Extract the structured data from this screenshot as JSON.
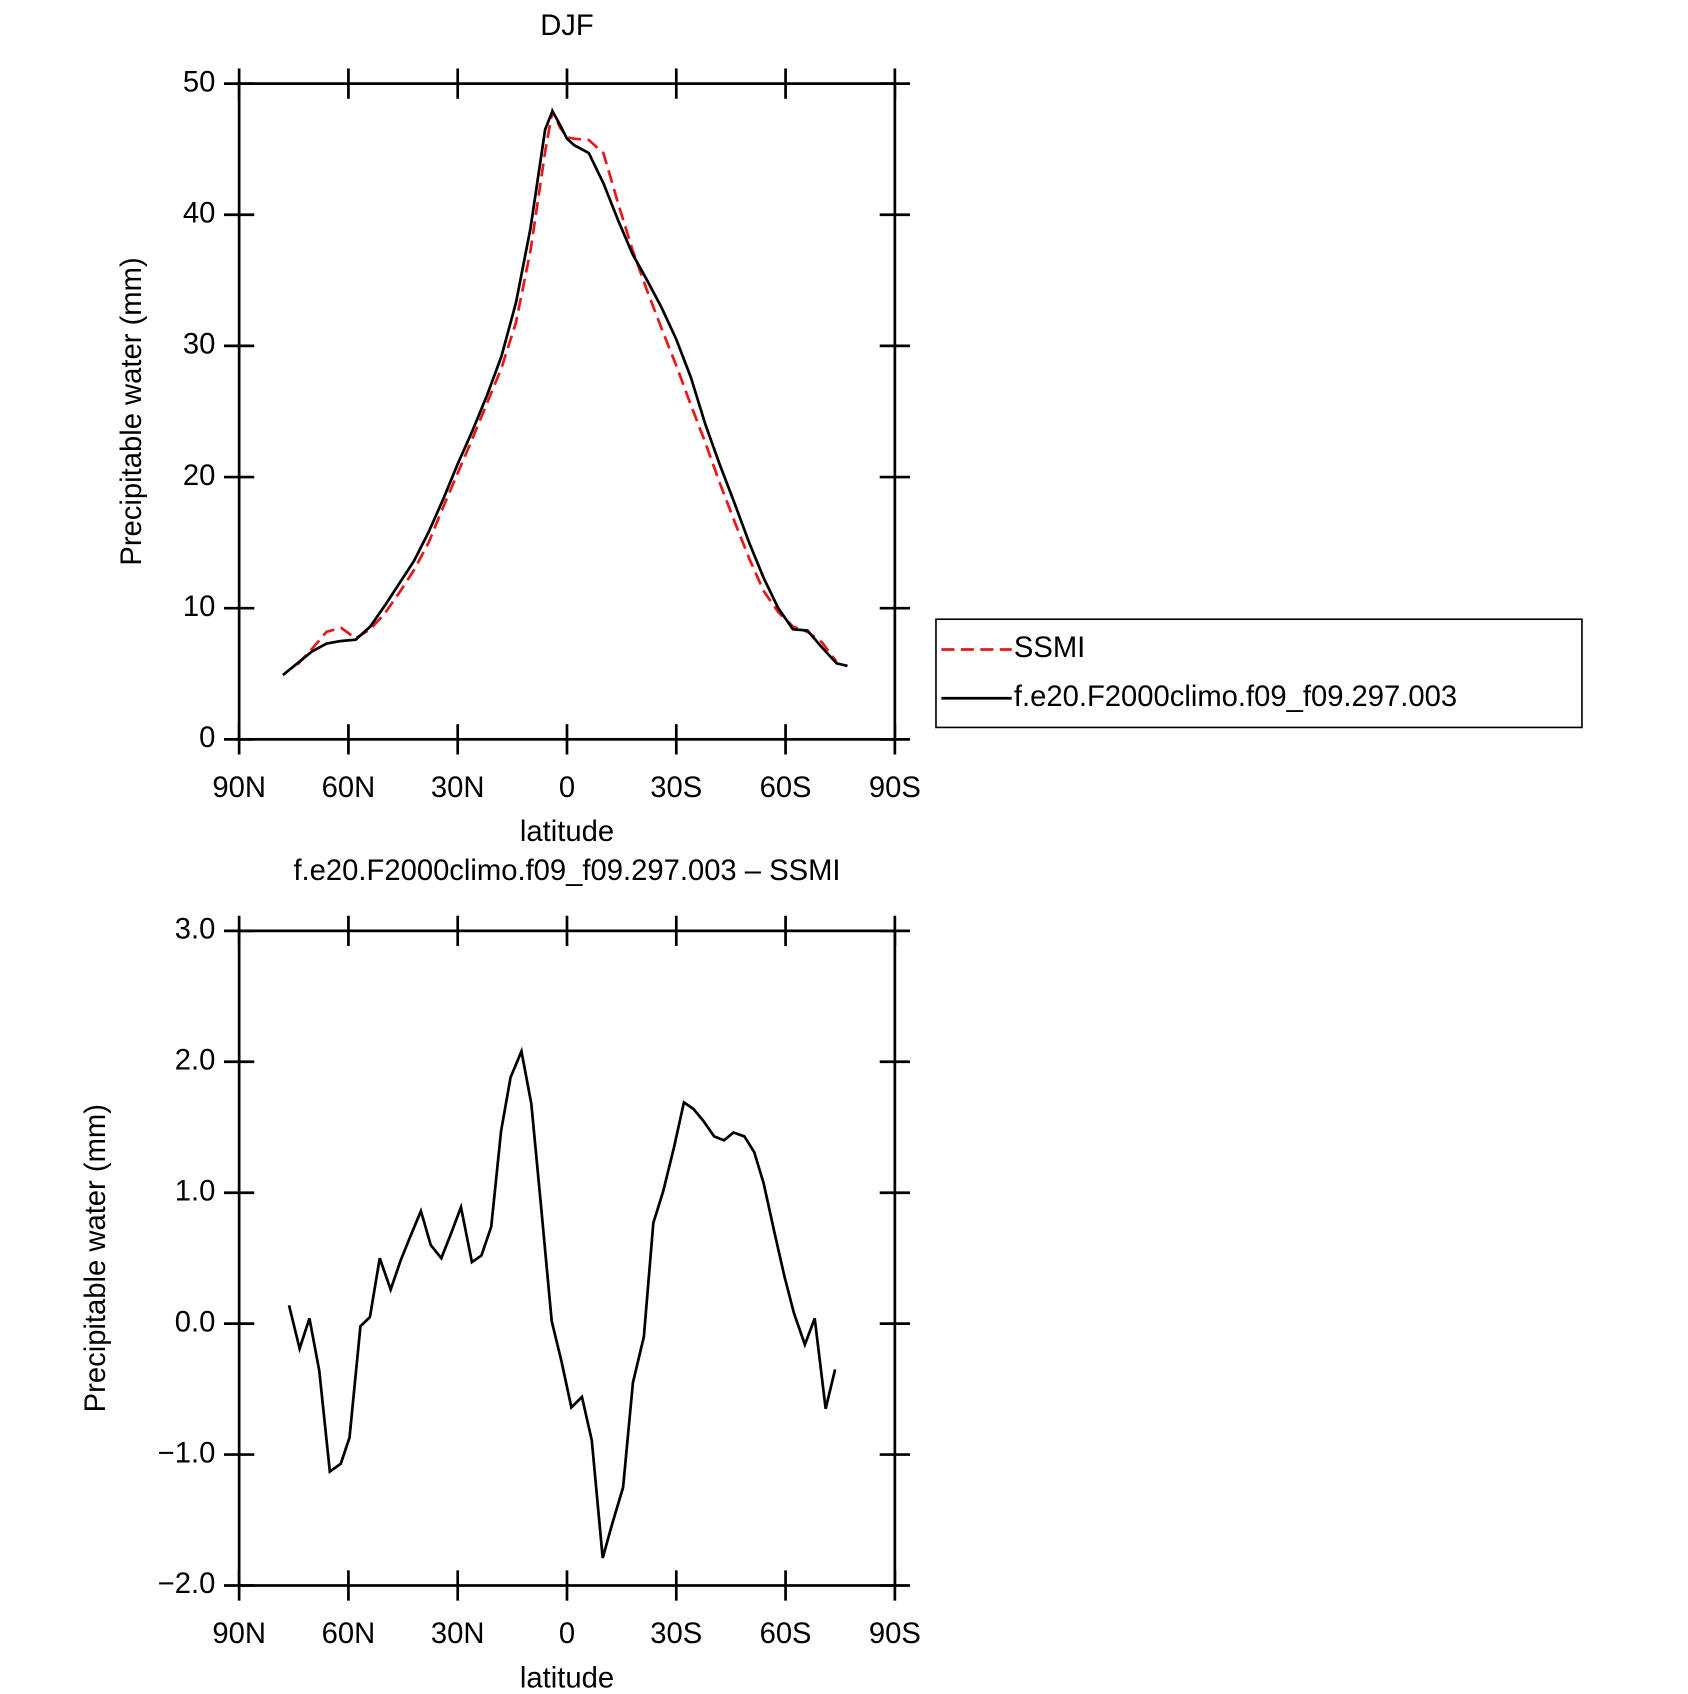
{
  "chart_data": [
    {
      "type": "line",
      "title": "DJF",
      "xlabel": "latitude",
      "ylabel": "Precipitable water (mm)",
      "x": [
        78,
        74,
        70,
        66,
        62,
        58,
        54,
        50,
        46,
        42,
        38,
        34,
        30,
        26,
        22,
        18,
        14,
        10,
        6,
        4,
        2,
        0,
        -2,
        -6,
        -10,
        -14,
        -18,
        -22,
        -26,
        -30,
        -34,
        -38,
        -42,
        -46,
        -50,
        -54,
        -58,
        -62,
        -66,
        -70,
        -74,
        -77
      ],
      "series": [
        {
          "name": "SSMI",
          "color": "#e41a1c",
          "dash": true,
          "values": [
            null,
            5.7,
            6.9,
            8.2,
            8.5,
            7.7,
            8.4,
            9.6,
            11.2,
            12.9,
            15.0,
            17.7,
            20.3,
            22.9,
            25.6,
            28.3,
            31.8,
            37.3,
            44.8,
            47.9,
            46.7,
            45.9,
            45.8,
            45.7,
            44.7,
            40.9,
            37.3,
            34.2,
            31.3,
            28.5,
            25.5,
            22.6,
            19.5,
            16.6,
            13.8,
            11.3,
            9.7,
            8.6,
            8.2,
            7.4,
            5.9,
            null
          ]
        },
        {
          "name": "f.e20.F2000climo.f09_f09.297.003",
          "color": "#000000",
          "dash": false,
          "values": [
            4.9,
            5.8,
            6.7,
            7.3,
            7.5,
            7.6,
            8.6,
            10.2,
            11.9,
            13.6,
            15.8,
            18.3,
            21.0,
            23.5,
            26.2,
            29.2,
            33.3,
            39.0,
            46.5,
            47.9,
            46.9,
            45.8,
            45.3,
            44.7,
            42.4,
            39.6,
            37.0,
            35.0,
            32.9,
            30.5,
            27.6,
            24.0,
            20.9,
            18.0,
            15.0,
            12.3,
            10.0,
            8.4,
            8.3,
            7.0,
            5.8,
            5.6
          ]
        }
      ],
      "xlim": [
        90,
        -90
      ],
      "xticks": [
        {
          "value": 90,
          "label": "90N"
        },
        {
          "value": 60,
          "label": "60N"
        },
        {
          "value": 30,
          "label": "30N"
        },
        0,
        {
          "value": -30,
          "label": "30S"
        },
        {
          "value": -60,
          "label": "60S"
        },
        {
          "value": -90,
          "label": "90S"
        }
      ],
      "ylim": [
        0,
        50
      ],
      "yticks": [
        0,
        10,
        20,
        30,
        40,
        50
      ],
      "legend": "right"
    },
    {
      "type": "line",
      "title": "f.e20.F2000climo.f09_f09.297.003 – SSMI",
      "xlabel": "latitude",
      "ylabel": "Precipitable water (mm)",
      "x": [
        76.3,
        73.4,
        70.7,
        68.0,
        65.1,
        62.1,
        59.7,
        56.7,
        54.1,
        51.4,
        48.4,
        45.7,
        43.1,
        40.1,
        37.4,
        34.5,
        31.8,
        29.1,
        26.1,
        23.5,
        20.8,
        18.1,
        15.5,
        12.5,
        9.8,
        7.1,
        4.2,
        1.5,
        -1.2,
        -4.1,
        -6.8,
        -9.8,
        -12.4,
        -15.4,
        -18.1,
        -21.1,
        -23.7,
        -26.4,
        -29.4,
        -32.1,
        -34.7,
        -37.4,
        -40.4,
        -43.1,
        -45.7,
        -48.7,
        -51.4,
        -54.0,
        -57.0,
        -59.7,
        -62.3,
        -65.3,
        -68.0,
        -71.0,
        -73.6
      ],
      "values": [
        0.14,
        -0.19,
        0.04,
        -0.36,
        -1.13,
        -1.07,
        -0.87,
        -0.02,
        0.05,
        0.5,
        0.26,
        0.48,
        0.66,
        0.86,
        0.6,
        0.5,
        0.69,
        0.89,
        0.47,
        0.52,
        0.74,
        1.47,
        1.88,
        2.08,
        1.68,
        0.89,
        0.02,
        -0.29,
        -0.64,
        -0.56,
        -0.89,
        -1.79,
        -1.53,
        -1.25,
        -0.45,
        -0.1,
        0.77,
        1.01,
        1.35,
        1.69,
        1.64,
        1.55,
        1.43,
        1.4,
        1.46,
        1.43,
        1.31,
        1.07,
        0.69,
        0.36,
        0.08,
        -0.16,
        0.04,
        -0.65,
        -0.35
      ],
      "color": "#000000",
      "xlim": [
        90,
        -90
      ],
      "xticks": [
        {
          "value": 90,
          "label": "90N"
        },
        {
          "value": 60,
          "label": "60N"
        },
        {
          "value": 30,
          "label": "30N"
        },
        0,
        {
          "value": -30,
          "label": "30S"
        },
        {
          "value": -60,
          "label": "60S"
        },
        {
          "value": -90,
          "label": "90S"
        }
      ],
      "ylim": [
        -2,
        3
      ],
      "yticks": [
        {
          "value": -2,
          "label": "−2.0"
        },
        {
          "value": -1,
          "label": "−1.0"
        },
        {
          "value": 0,
          "label": "0.0"
        },
        {
          "value": 1,
          "label": "1.0"
        },
        {
          "value": 2,
          "label": "2.0"
        },
        {
          "value": 3,
          "label": "3.0"
        }
      ]
    }
  ]
}
